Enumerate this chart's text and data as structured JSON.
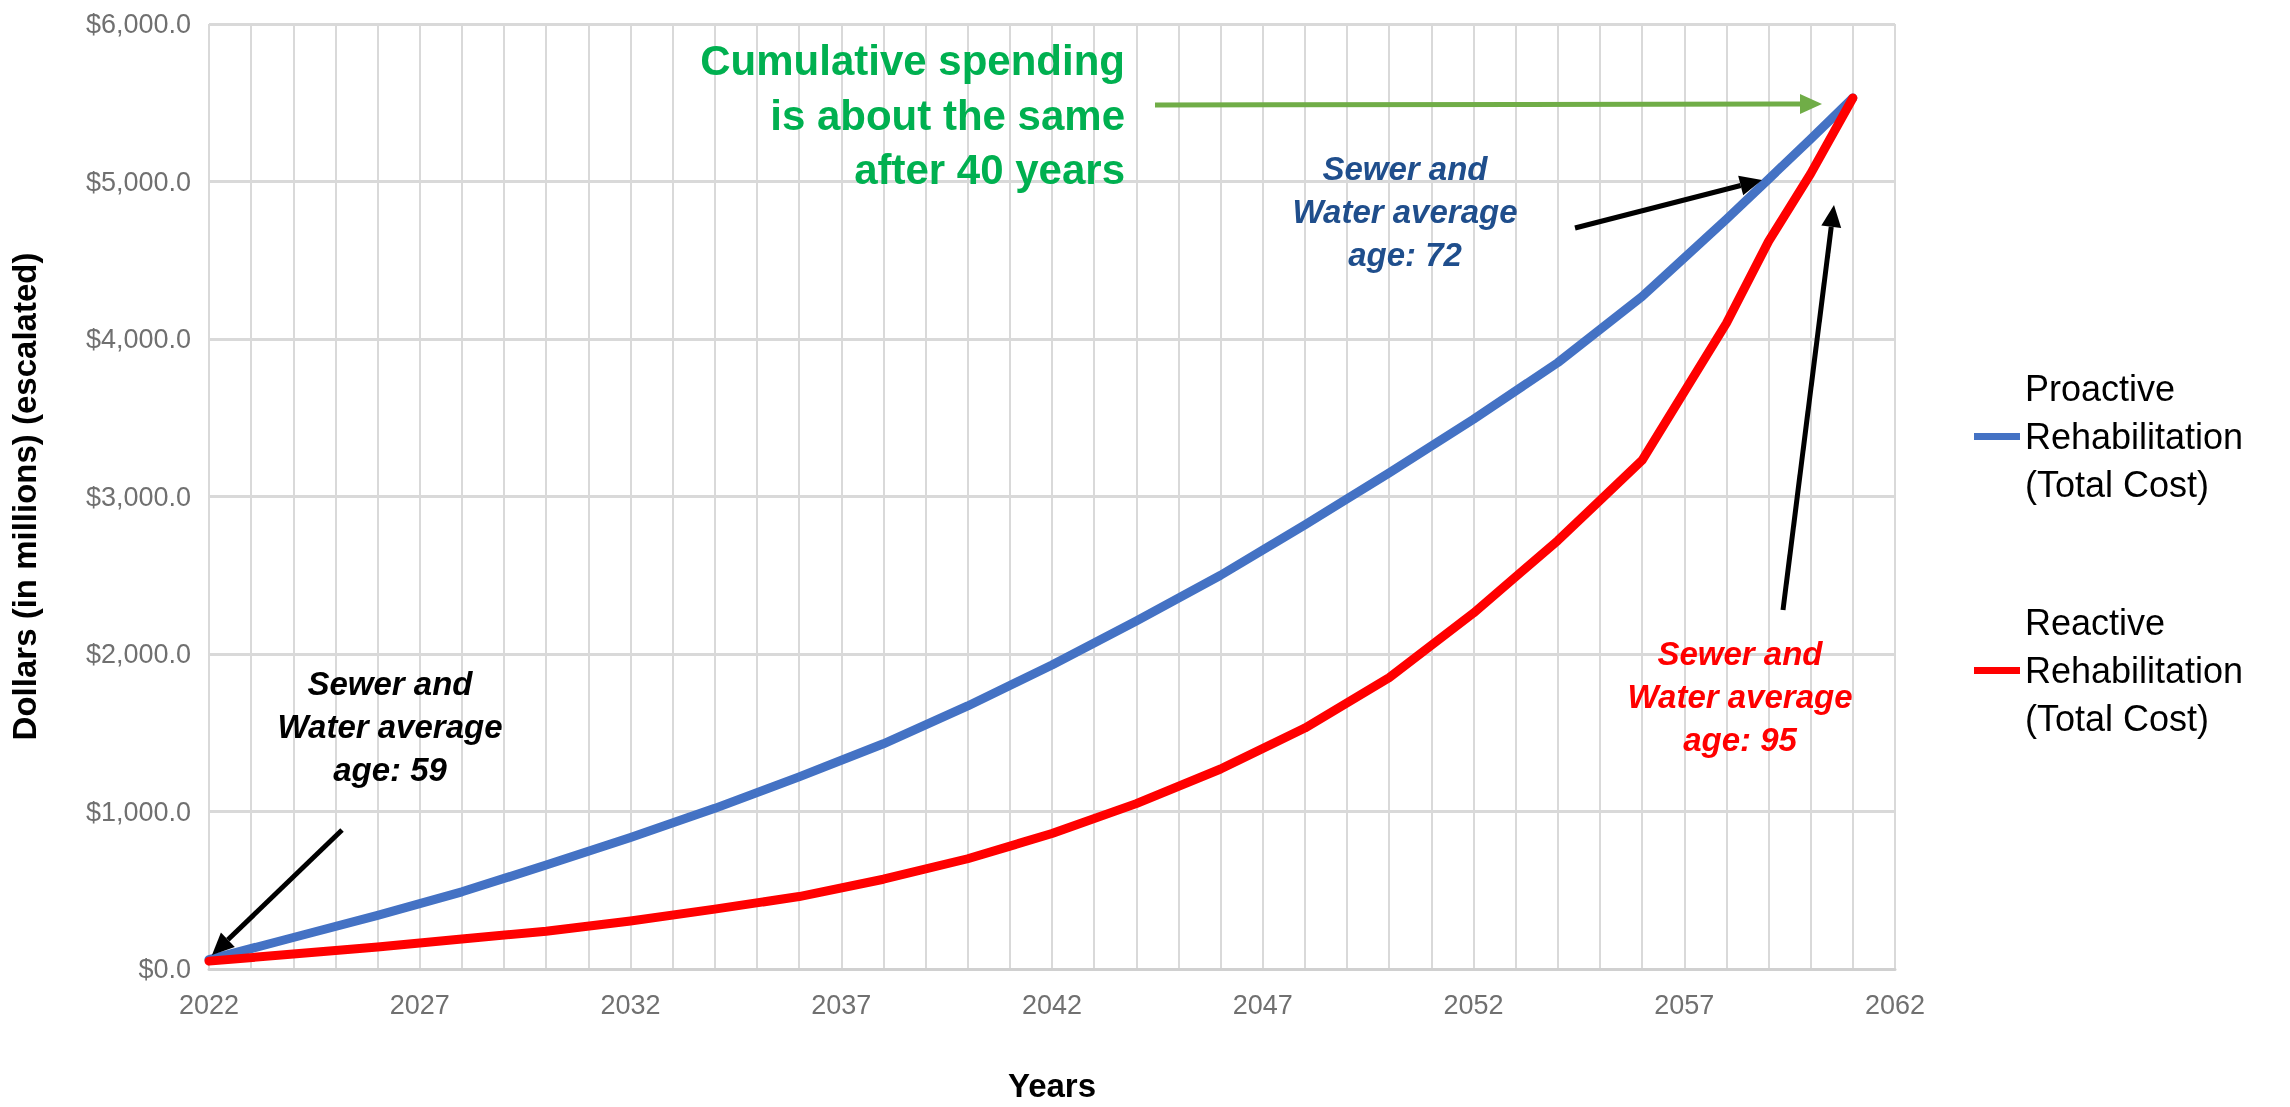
{
  "chart_data": {
    "type": "line",
    "xlabel": "Years",
    "ylabel": "Dollars (in millions) (escalated)",
    "xlim": [
      2022,
      2062
    ],
    "xticks": [
      2022,
      {
        "value": 2023,
        "label": null
      },
      {
        "value": 2024,
        "label": null
      },
      {
        "value": 2025,
        "label": null
      },
      {
        "value": 2026,
        "label": null
      },
      2027,
      {
        "value": 2028,
        "label": null
      },
      {
        "value": 2029,
        "label": null
      },
      {
        "value": 2030,
        "label": null
      },
      {
        "value": 2031,
        "label": null
      },
      2032,
      {
        "value": 2033,
        "label": null
      },
      {
        "value": 2034,
        "label": null
      },
      {
        "value": 2035,
        "label": null
      },
      {
        "value": 2036,
        "label": null
      },
      2037,
      {
        "value": 2038,
        "label": null
      },
      {
        "value": 2039,
        "label": null
      },
      {
        "value": 2040,
        "label": null
      },
      {
        "value": 2041,
        "label": null
      },
      2042,
      {
        "value": 2043,
        "label": null
      },
      {
        "value": 2044,
        "label": null
      },
      {
        "value": 2045,
        "label": null
      },
      {
        "value": 2046,
        "label": null
      },
      2047,
      {
        "value": 2048,
        "label": null
      },
      {
        "value": 2049,
        "label": null
      },
      {
        "value": 2050,
        "label": null
      },
      {
        "value": 2051,
        "label": null
      },
      2052,
      {
        "value": 2053,
        "label": null
      },
      {
        "value": 2054,
        "label": null
      },
      {
        "value": 2055,
        "label": null
      },
      {
        "value": 2056,
        "label": null
      },
      2057,
      {
        "value": 2058,
        "label": null
      },
      {
        "value": 2059,
        "label": null
      },
      {
        "value": 2060,
        "label": null
      },
      {
        "value": 2061,
        "label": null
      },
      2062
    ],
    "ylim": [
      0,
      6000
    ],
    "yticks": [
      {
        "value": 0,
        "label": "$0.0"
      },
      {
        "value": 1000,
        "label": "$1,000.0"
      },
      {
        "value": 2000,
        "label": "$2,000.0"
      },
      {
        "value": 3000,
        "label": "$3,000.0"
      },
      {
        "value": 4000,
        "label": "$4,000.0"
      },
      {
        "value": 5000,
        "label": "$5,000.0"
      },
      {
        "value": 6000,
        "label": "$6,000.0"
      }
    ],
    "x": [
      2022,
      2024,
      2026,
      2028,
      2030,
      2032,
      2034,
      2036,
      2038,
      2040,
      2042,
      2044,
      2046,
      2048,
      2050,
      2052,
      2054,
      2056,
      2058,
      2059,
      2060,
      2061
    ],
    "series": [
      {
        "name": "Proactive Rehabilitation (Total Cost)",
        "color": "#4472c4",
        "values": [
          60,
          200,
          340,
          490,
          660,
          835,
          1020,
          1220,
          1430,
          1670,
          1930,
          2210,
          2500,
          2820,
          3150,
          3490,
          3850,
          4270,
          4760,
          5015,
          5270,
          5530
        ]
      },
      {
        "name": "Reactive Rehabilitation (Total Cost)",
        "color": "#ff0000",
        "values": [
          50,
          95,
          140,
          190,
          240,
          305,
          380,
          460,
          570,
          700,
          860,
          1050,
          1270,
          1530,
          1850,
          2260,
          2720,
          3230,
          4100,
          4620,
          5050,
          5530
        ]
      }
    ],
    "annotations": [
      "Cumulative spending\nis about the same\nafter 40 years",
      "Sewer and\nWater average\nage: 72",
      "Sewer and\nWater average\nage: 95",
      "Sewer and\nWater average\nage: 59"
    ],
    "grid": true,
    "legend": "right",
    "marker": "none",
    "line_style": "solid"
  }
}
